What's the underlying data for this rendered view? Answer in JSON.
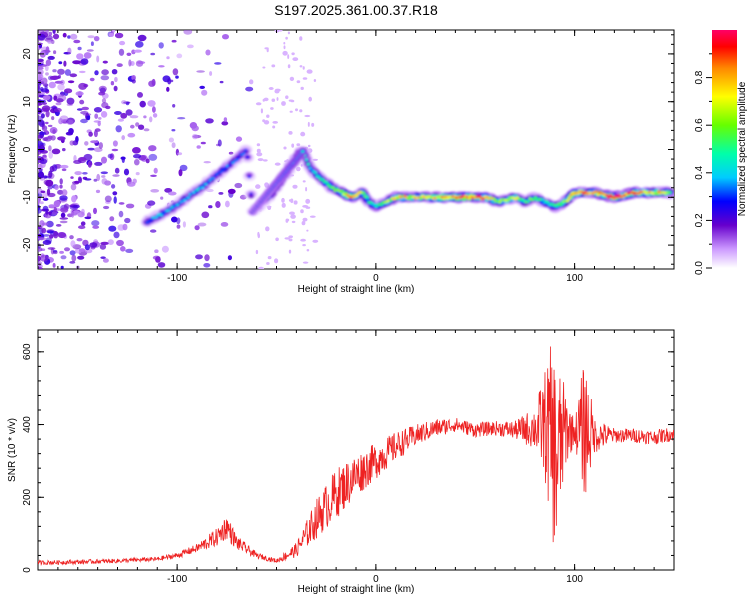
{
  "title": "S197.2025.361.00.37.R18",
  "chart_data": [
    {
      "type": "heatmap",
      "title": "S197.2025.361.00.37.R18",
      "xlabel": "Height of straight line (km)",
      "ylabel": "Frequency (Hz)",
      "xlim": [
        -170,
        150
      ],
      "ylim": [
        -25,
        25
      ],
      "xticks": [
        -100,
        0,
        100
      ],
      "yticks": [
        -20,
        -10,
        0,
        10,
        20
      ],
      "colorbar": {
        "label": "Normalized spectral amplitude",
        "range": [
          0,
          1
        ],
        "ticks": [
          "0.0",
          "0.2",
          "0.4",
          "0.6",
          "0.8"
        ]
      },
      "ridge": {
        "x": [
          -115,
          -105,
          -95,
          -88,
          -82,
          -76,
          -70,
          -65,
          -62,
          -57,
          -52,
          -47,
          -42,
          -37,
          -33,
          -28,
          -22,
          -17,
          -12,
          -7,
          -3,
          0,
          5,
          10,
          15,
          25,
          35,
          45,
          55,
          62,
          70,
          75,
          80,
          85,
          90,
          95,
          100,
          110,
          120,
          130,
          140,
          148
        ],
        "y": [
          -15,
          -13,
          -10,
          -8,
          -6,
          -4,
          -2,
          0,
          -13,
          -11,
          -9,
          -6,
          -3,
          0,
          -4,
          -6,
          -8,
          -9,
          -10,
          -9,
          -11,
          -12,
          -11,
          -10,
          -10,
          -10,
          -10,
          -10,
          -10,
          -11,
          -10,
          -11,
          -10,
          -11,
          -12,
          -11,
          -9,
          -9,
          -10,
          -9,
          -9,
          -9
        ],
        "amplitude": [
          0.35,
          0.4,
          0.35,
          0.4,
          0.3,
          0.35,
          0.3,
          0.3,
          0.25,
          0.3,
          0.35,
          0.4,
          0.5,
          0.45,
          0.4,
          0.5,
          0.55,
          0.65,
          0.9,
          0.6,
          0.55,
          0.45,
          0.6,
          0.7,
          0.75,
          0.7,
          0.8,
          0.95,
          0.85,
          0.6,
          0.7,
          0.5,
          0.6,
          0.45,
          0.5,
          0.6,
          0.9,
          0.75,
          0.95,
          0.85,
          0.75,
          0.7
        ]
      }
    },
    {
      "type": "line",
      "xlabel": "Height of straight line (km)",
      "ylabel": "SNR (10 * v/v)",
      "xlim": [
        -170,
        150
      ],
      "ylim": [
        0,
        660
      ],
      "xticks": [
        -100,
        0,
        100
      ],
      "yticks": [
        0,
        200,
        400,
        600
      ],
      "color": "#ee2222",
      "series": [
        {
          "name": "SNR",
          "x": [
            -170,
            -150,
            -130,
            -110,
            -100,
            -90,
            -80,
            -75,
            -70,
            -60,
            -50,
            -40,
            -30,
            -20,
            -10,
            0,
            10,
            20,
            30,
            40,
            50,
            60,
            70,
            80,
            85,
            88,
            91,
            95,
            100,
            105,
            110,
            120,
            130,
            140,
            150
          ],
          "y": [
            20,
            22,
            25,
            30,
            40,
            60,
            90,
            120,
            75,
            40,
            25,
            55,
            140,
            210,
            260,
            300,
            340,
            370,
            390,
            400,
            385,
            390,
            385,
            390,
            400,
            360,
            300,
            390,
            380,
            390,
            370,
            370,
            370,
            365,
            375
          ],
          "noise": [
            6,
            6,
            6,
            6,
            8,
            12,
            25,
            35,
            20,
            8,
            6,
            20,
            55,
            70,
            60,
            50,
            40,
            30,
            25,
            20,
            20,
            20,
            25,
            60,
            150,
            260,
            280,
            120,
            30,
            200,
            50,
            20,
            20,
            20,
            20
          ]
        }
      ]
    }
  ]
}
